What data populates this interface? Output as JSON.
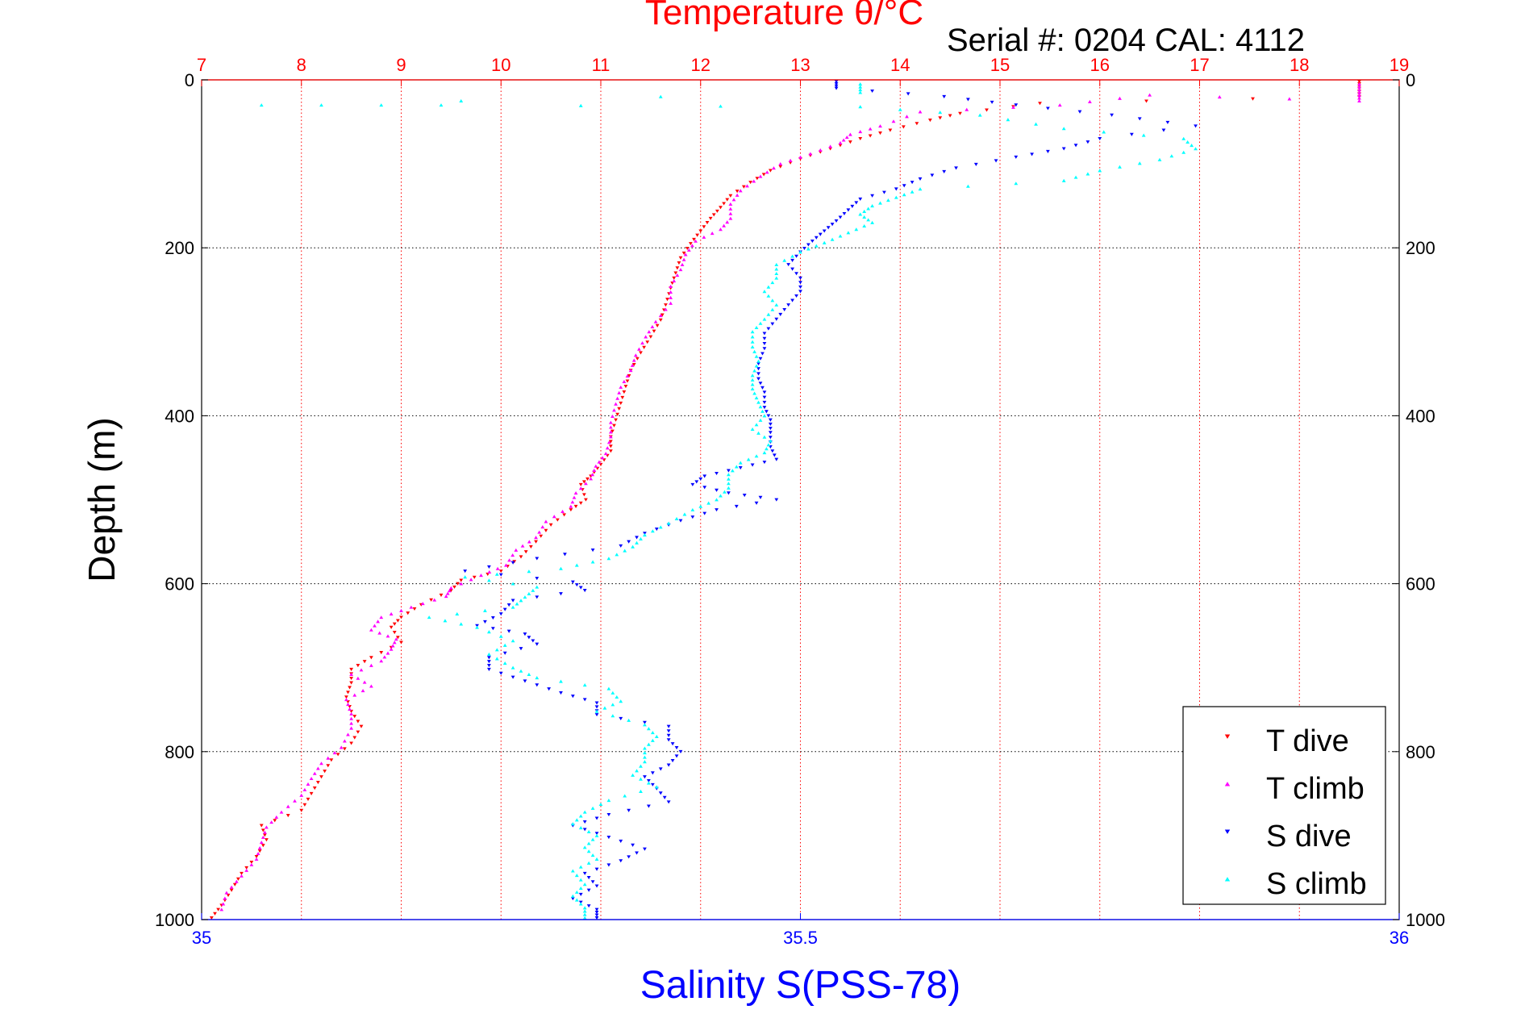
{
  "chart_data": {
    "type": "scatter",
    "title": "Temperature θ/°C",
    "annotation": "Serial #: 0204  CAL: 4112",
    "xlabel_top": "Temperature θ/°C",
    "xlabel_bottom": "Salinity S(PSS-78)",
    "ylabel": "Depth (m)",
    "temp_range": [
      7,
      19
    ],
    "salinity_range": [
      35,
      36
    ],
    "depth_range": [
      0,
      1000
    ],
    "y_reversed": true,
    "grid": true,
    "legend_position": "bottom-right",
    "temp_ticks": [
      "7",
      "8",
      "9",
      "10",
      "11",
      "12",
      "13",
      "14",
      "15",
      "16",
      "17",
      "18",
      "19"
    ],
    "salinity_ticks": [
      "35",
      "35.5",
      "36"
    ],
    "depth_ticks": [
      "0",
      "200",
      "400",
      "600",
      "800",
      "1000"
    ],
    "series": [
      {
        "name": "T dive",
        "axis": "temperature",
        "color": "#ff0000",
        "marker": "triangle-down",
        "points": [
          [
            18.6,
            2
          ],
          [
            18.6,
            10
          ],
          [
            18.6,
            20
          ],
          [
            15.4,
            28
          ],
          [
            14.6,
            40
          ],
          [
            14.3,
            48
          ],
          [
            13.9,
            60
          ],
          [
            13.6,
            70
          ],
          [
            13.3,
            82
          ],
          [
            13.0,
            94
          ],
          [
            12.7,
            108
          ],
          [
            12.5,
            122
          ],
          [
            12.3,
            138
          ],
          [
            12.2,
            152
          ],
          [
            12.1,
            165
          ],
          [
            12.0,
            180
          ],
          [
            11.9,
            195
          ],
          [
            11.8,
            212
          ],
          [
            11.75,
            230
          ],
          [
            11.7,
            248
          ],
          [
            11.65,
            268
          ],
          [
            11.6,
            286
          ],
          [
            11.5,
            306
          ],
          [
            11.4,
            325
          ],
          [
            11.3,
            346
          ],
          [
            11.25,
            365
          ],
          [
            11.2,
            385
          ],
          [
            11.15,
            405
          ],
          [
            11.1,
            425
          ],
          [
            11.1,
            442
          ],
          [
            11.0,
            458
          ],
          [
            10.9,
            472
          ],
          [
            10.8,
            482
          ],
          [
            10.85,
            500
          ],
          [
            10.7,
            512
          ],
          [
            10.5,
            530
          ],
          [
            10.35,
            550
          ],
          [
            10.2,
            568
          ],
          [
            10.0,
            585
          ],
          [
            9.6,
            596
          ],
          [
            9.5,
            608
          ],
          [
            9.2,
            625
          ],
          [
            9.0,
            640
          ],
          [
            8.9,
            652
          ],
          [
            9.0,
            670
          ],
          [
            8.7,
            688
          ],
          [
            8.5,
            702
          ],
          [
            8.5,
            718
          ],
          [
            8.45,
            735
          ],
          [
            8.5,
            752
          ],
          [
            8.6,
            770
          ],
          [
            8.5,
            790
          ],
          [
            8.3,
            810
          ],
          [
            8.2,
            830
          ],
          [
            8.1,
            850
          ],
          [
            8.0,
            870
          ],
          [
            7.6,
            888
          ],
          [
            7.65,
            905
          ],
          [
            7.55,
            925
          ],
          [
            7.4,
            945
          ],
          [
            7.3,
            965
          ],
          [
            7.2,
            983
          ],
          [
            7.1,
            998
          ]
        ]
      },
      {
        "name": "T climb",
        "axis": "temperature",
        "color": "#ff00ff",
        "marker": "triangle-up",
        "points": [
          [
            18.6,
            5
          ],
          [
            18.6,
            15
          ],
          [
            18.6,
            25
          ],
          [
            16.5,
            18
          ],
          [
            15.6,
            30
          ],
          [
            14.2,
            38
          ],
          [
            13.8,
            55
          ],
          [
            13.5,
            65
          ],
          [
            13.4,
            75
          ],
          [
            13.1,
            88
          ],
          [
            12.8,
            100
          ],
          [
            12.6,
            115
          ],
          [
            12.4,
            132
          ],
          [
            12.3,
            148
          ],
          [
            12.3,
            165
          ],
          [
            12.2,
            178
          ],
          [
            11.95,
            192
          ],
          [
            11.85,
            208
          ],
          [
            11.8,
            226
          ],
          [
            11.7,
            246
          ],
          [
            11.7,
            266
          ],
          [
            11.55,
            288
          ],
          [
            11.45,
            306
          ],
          [
            11.35,
            328
          ],
          [
            11.3,
            346
          ],
          [
            11.2,
            366
          ],
          [
            11.15,
            386
          ],
          [
            11.1,
            408
          ],
          [
            11.1,
            425
          ],
          [
            11.05,
            445
          ],
          [
            10.95,
            460
          ],
          [
            10.9,
            475
          ],
          [
            10.75,
            492
          ],
          [
            10.7,
            508
          ],
          [
            10.45,
            526
          ],
          [
            10.35,
            545
          ],
          [
            10.15,
            560
          ],
          [
            10.05,
            578
          ],
          [
            9.8,
            590
          ],
          [
            9.5,
            605
          ],
          [
            9.45,
            615
          ],
          [
            9.1,
            628
          ],
          [
            8.8,
            640
          ],
          [
            8.7,
            655
          ],
          [
            8.95,
            666
          ],
          [
            8.9,
            678
          ],
          [
            8.8,
            692
          ],
          [
            8.5,
            708
          ],
          [
            8.7,
            722
          ],
          [
            8.45,
            738
          ],
          [
            8.5,
            755
          ],
          [
            8.5,
            772
          ],
          [
            8.4,
            795
          ],
          [
            8.2,
            814
          ],
          [
            8.1,
            832
          ],
          [
            8.0,
            852
          ],
          [
            7.8,
            872
          ],
          [
            7.65,
            890
          ],
          [
            7.6,
            908
          ],
          [
            7.55,
            928
          ],
          [
            7.4,
            948
          ],
          [
            7.25,
            968
          ],
          [
            7.2,
            988
          ]
        ]
      },
      {
        "name": "S dive",
        "axis": "salinity",
        "color": "#0000ff",
        "marker": "triangle-down",
        "points": [
          [
            35.53,
            2
          ],
          [
            35.53,
            10
          ],
          [
            35.62,
            20
          ],
          [
            35.68,
            30
          ],
          [
            35.76,
            42
          ],
          [
            35.83,
            55
          ],
          [
            35.75,
            70
          ],
          [
            35.72,
            82
          ],
          [
            35.68,
            92
          ],
          [
            35.63,
            105
          ],
          [
            35.6,
            118
          ],
          [
            35.58,
            130
          ],
          [
            35.55,
            142
          ],
          [
            35.54,
            155
          ],
          [
            35.53,
            168
          ],
          [
            35.52,
            180
          ],
          [
            35.51,
            192
          ],
          [
            35.5,
            205
          ],
          [
            35.49,
            220
          ],
          [
            35.5,
            236
          ],
          [
            35.5,
            252
          ],
          [
            35.49,
            268
          ],
          [
            35.48,
            285
          ],
          [
            35.47,
            302
          ],
          [
            35.47,
            320
          ],
          [
            35.465,
            338
          ],
          [
            35.465,
            356
          ],
          [
            35.47,
            372
          ],
          [
            35.47,
            390
          ],
          [
            35.475,
            405
          ],
          [
            35.475,
            420
          ],
          [
            35.475,
            437
          ],
          [
            35.48,
            452
          ],
          [
            35.45,
            462
          ],
          [
            35.42,
            472
          ],
          [
            35.41,
            482
          ],
          [
            35.44,
            492
          ],
          [
            35.48,
            500
          ],
          [
            35.43,
            512
          ],
          [
            35.4,
            525
          ],
          [
            35.37,
            540
          ],
          [
            35.35,
            555
          ],
          [
            35.28,
            570
          ],
          [
            35.22,
            585
          ],
          [
            35.31,
            598
          ],
          [
            35.32,
            608
          ],
          [
            35.26,
            620
          ],
          [
            35.25,
            636
          ],
          [
            35.23,
            650
          ],
          [
            35.27,
            660
          ],
          [
            35.28,
            672
          ],
          [
            35.24,
            688
          ],
          [
            35.24,
            702
          ],
          [
            35.27,
            716
          ],
          [
            35.3,
            730
          ],
          [
            35.33,
            742
          ],
          [
            35.33,
            756
          ],
          [
            35.39,
            770
          ],
          [
            35.39,
            786
          ],
          [
            35.4,
            800
          ],
          [
            35.39,
            816
          ],
          [
            35.37,
            830
          ],
          [
            35.38,
            844
          ],
          [
            35.39,
            860
          ],
          [
            35.34,
            875
          ],
          [
            35.31,
            888
          ],
          [
            35.34,
            902
          ],
          [
            35.37,
            916
          ],
          [
            35.35,
            930
          ],
          [
            35.32,
            945
          ],
          [
            35.33,
            960
          ],
          [
            35.31,
            975
          ],
          [
            35.33,
            988
          ],
          [
            35.33,
            998
          ]
        ]
      },
      {
        "name": "S climb",
        "axis": "salinity",
        "color": "#00ffff",
        "marker": "triangle-up",
        "points": [
          [
            35.55,
            5
          ],
          [
            35.55,
            15
          ],
          [
            35.05,
            30
          ],
          [
            35.2,
            30
          ],
          [
            35.55,
            32
          ],
          [
            35.65,
            42
          ],
          [
            35.72,
            58
          ],
          [
            35.82,
            70
          ],
          [
            35.83,
            82
          ],
          [
            35.8,
            95
          ],
          [
            35.75,
            108
          ],
          [
            35.72,
            120
          ],
          [
            35.6,
            130
          ],
          [
            35.58,
            140
          ],
          [
            35.56,
            150
          ],
          [
            35.55,
            160
          ],
          [
            35.56,
            170
          ],
          [
            35.54,
            182
          ],
          [
            35.52,
            194
          ],
          [
            35.5,
            205
          ],
          [
            35.48,
            220
          ],
          [
            35.48,
            236
          ],
          [
            35.47,
            252
          ],
          [
            35.48,
            268
          ],
          [
            35.47,
            285
          ],
          [
            35.46,
            300
          ],
          [
            35.46,
            318
          ],
          [
            35.465,
            335
          ],
          [
            35.46,
            352
          ],
          [
            35.46,
            368
          ],
          [
            35.465,
            384
          ],
          [
            35.47,
            400
          ],
          [
            35.46,
            416
          ],
          [
            35.475,
            430
          ],
          [
            35.47,
            444
          ],
          [
            35.45,
            456
          ],
          [
            35.44,
            470
          ],
          [
            35.44,
            486
          ],
          [
            35.43,
            500
          ],
          [
            35.41,
            512
          ],
          [
            35.39,
            528
          ],
          [
            35.37,
            542
          ],
          [
            35.36,
            556
          ],
          [
            35.34,
            570
          ],
          [
            35.3,
            582
          ],
          [
            35.22,
            592
          ],
          [
            35.28,
            604
          ],
          [
            35.27,
            616
          ],
          [
            35.26,
            628
          ],
          [
            35.19,
            640
          ],
          [
            35.23,
            652
          ],
          [
            35.26,
            668
          ],
          [
            35.24,
            684
          ],
          [
            35.26,
            700
          ],
          [
            35.28,
            712
          ],
          [
            35.34,
            725
          ],
          [
            35.35,
            740
          ],
          [
            35.33,
            752
          ],
          [
            35.37,
            768
          ],
          [
            35.38,
            782
          ],
          [
            35.37,
            796
          ],
          [
            35.37,
            812
          ],
          [
            35.36,
            828
          ],
          [
            35.38,
            842
          ],
          [
            35.34,
            858
          ],
          [
            35.32,
            872
          ],
          [
            35.31,
            886
          ],
          [
            35.33,
            900
          ],
          [
            35.32,
            914
          ],
          [
            35.33,
            928
          ],
          [
            35.31,
            942
          ],
          [
            35.32,
            958
          ],
          [
            35.31,
            972
          ],
          [
            35.32,
            986
          ],
          [
            35.32,
            998
          ]
        ]
      }
    ]
  }
}
